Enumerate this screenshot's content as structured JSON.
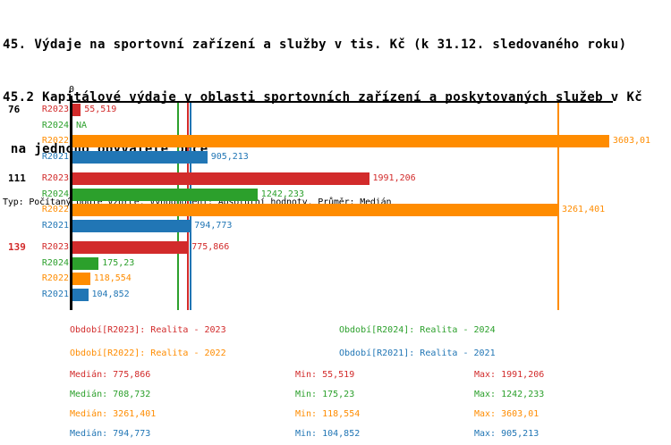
{
  "header": {
    "title_line1": "45. Výdaje na sportovní zařízení a služby v tis. Kč (k 31.12. sledovaného roku)",
    "title_line2": "45.2 Kapitálové výdaje v oblasti sportovních zařízení a poskytovaných služeb v Kč",
    "title_line3": " na jednoho obyvatele obce",
    "meta_line": "Typ: Počítaný podle vzorce, Vyhodnocení: Absolutní hodnoty, Průměr: Medián"
  },
  "colors": {
    "R2023": "#d22b2b",
    "R2024": "#2ca02c",
    "R2022": "#ff8c00",
    "R2021": "#2176b5",
    "axis": "#000000"
  },
  "chart_data": {
    "type": "bar",
    "orientation": "horizontal",
    "x_axis": {
      "zero_label": "0",
      "min": 0,
      "max": 3640,
      "grid": false
    },
    "series": [
      {
        "id": "R2023",
        "color": "#d22b2b"
      },
      {
        "id": "R2024",
        "color": "#2ca02c"
      },
      {
        "id": "R2022",
        "color": "#ff8c00"
      },
      {
        "id": "R2021",
        "color": "#2176b5"
      }
    ],
    "groups": [
      {
        "label": "76",
        "label_color": "#000000",
        "bars": [
          {
            "series": "R2023",
            "value": 55.519,
            "display": "55,519"
          },
          {
            "series": "R2024",
            "value": null,
            "display": "NA"
          },
          {
            "series": "R2022",
            "value": 3603.01,
            "display": "3603,01"
          },
          {
            "series": "R2021",
            "value": 905.213,
            "display": "905,213"
          }
        ]
      },
      {
        "label": "111",
        "label_color": "#000000",
        "bars": [
          {
            "series": "R2023",
            "value": 1991.206,
            "display": "1991,206"
          },
          {
            "series": "R2024",
            "value": 1242.233,
            "display": "1242,233"
          },
          {
            "series": "R2022",
            "value": 3261.401,
            "display": "3261,401"
          },
          {
            "series": "R2021",
            "value": 794.773,
            "display": "794,773"
          }
        ]
      },
      {
        "label": "139",
        "label_color": "#d22b2b",
        "bars": [
          {
            "series": "R2023",
            "value": 775.866,
            "display": "775,866"
          },
          {
            "series": "R2024",
            "value": 175.23,
            "display": "175,23"
          },
          {
            "series": "R2022",
            "value": 118.554,
            "display": "118,554"
          },
          {
            "series": "R2021",
            "value": 104.852,
            "display": "104,852"
          }
        ]
      }
    ],
    "median_lines": [
      {
        "series": "R2024",
        "value": 708.732
      },
      {
        "series": "R2023",
        "value": 775.866
      },
      {
        "series": "R2021",
        "value": 794.773
      },
      {
        "series": "R2022",
        "value": 3261.401
      }
    ]
  },
  "legend": {
    "items": [
      {
        "text": "Období[R2023]: Realita - 2023",
        "color": "#d22b2b"
      },
      {
        "text": "Období[R2024]: Realita - 2024",
        "color": "#2ca02c"
      },
      {
        "text": "Období[R2022]: Realita - 2022",
        "color": "#ff8c00"
      },
      {
        "text": "Období[R2021]: Realita - 2021",
        "color": "#2176b5"
      }
    ]
  },
  "stats": {
    "rows": [
      {
        "median": "Medián: 775,866",
        "min": "Min: 55,519",
        "max": "Max: 1991,206",
        "color": "#d22b2b"
      },
      {
        "median": "Medián: 708,732",
        "min": "Min: 175,23",
        "max": "Max: 1242,233",
        "color": "#2ca02c"
      },
      {
        "median": "Medián: 3261,401",
        "min": "Min: 118,554",
        "max": "Max: 3603,01",
        "color": "#ff8c00"
      },
      {
        "median": "Medián: 794,773",
        "min": "Min: 104,852",
        "max": "Max: 905,213",
        "color": "#2176b5"
      }
    ]
  }
}
